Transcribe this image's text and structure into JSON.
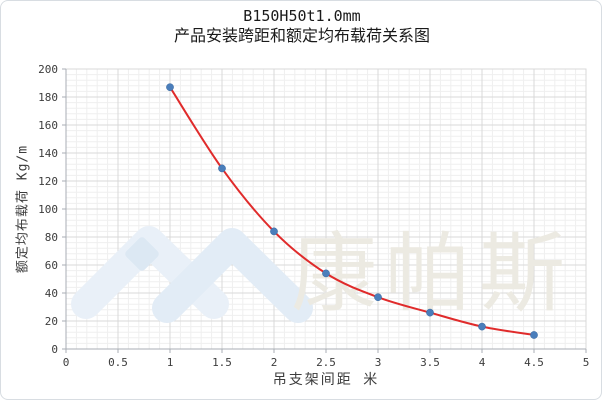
{
  "title": {
    "line1": "B150H50t1.0mm",
    "line2": "产品安装跨距和额定均布载荷关系图"
  },
  "watermark": {
    "text": "康帕斯",
    "logo": "double-chevron-mountain-logo",
    "logo_color_light": "#e9f0f8",
    "logo_color_mid": "#e2ecf6",
    "logo_accent_color": "#dce8f3",
    "text_color": "#eceae2"
  },
  "chart_data": {
    "type": "line",
    "smooth": true,
    "markers": true,
    "x": [
      1,
      1.5,
      2,
      2.5,
      3,
      3.5,
      4,
      4.5
    ],
    "y": [
      187,
      129,
      84,
      54,
      37,
      26,
      16,
      10
    ],
    "series_name": "额定均布载荷",
    "title": "B150H50t1.0mm 产品安装跨距和额定均布载荷关系图",
    "xlabel": "吊支架间距  米",
    "ylabel": "额定均布载荷  Kg/m",
    "xlim": [
      0,
      5
    ],
    "ylim": [
      0,
      200
    ],
    "x_major_step": 0.5,
    "x_minor_step": 0.1,
    "y_major_step": 20,
    "y_minor_step": 4,
    "xticks": [
      "0",
      "0.5",
      "1",
      "1.5",
      "2",
      "2.5",
      "3",
      "3.5",
      "4",
      "4.5",
      "5"
    ],
    "yticks": [
      "0",
      "20",
      "40",
      "60",
      "80",
      "100",
      "120",
      "140",
      "160",
      "180",
      "200"
    ],
    "grid": true,
    "legend": false,
    "line_color": "#e02b2b",
    "marker_color": "#4a7ebb",
    "major_grid_color": "#d9d9d9",
    "minor_grid_color": "#efefef",
    "axis_line_color": "#a9aeb4",
    "tick_label_color": "#3c3c3c"
  }
}
